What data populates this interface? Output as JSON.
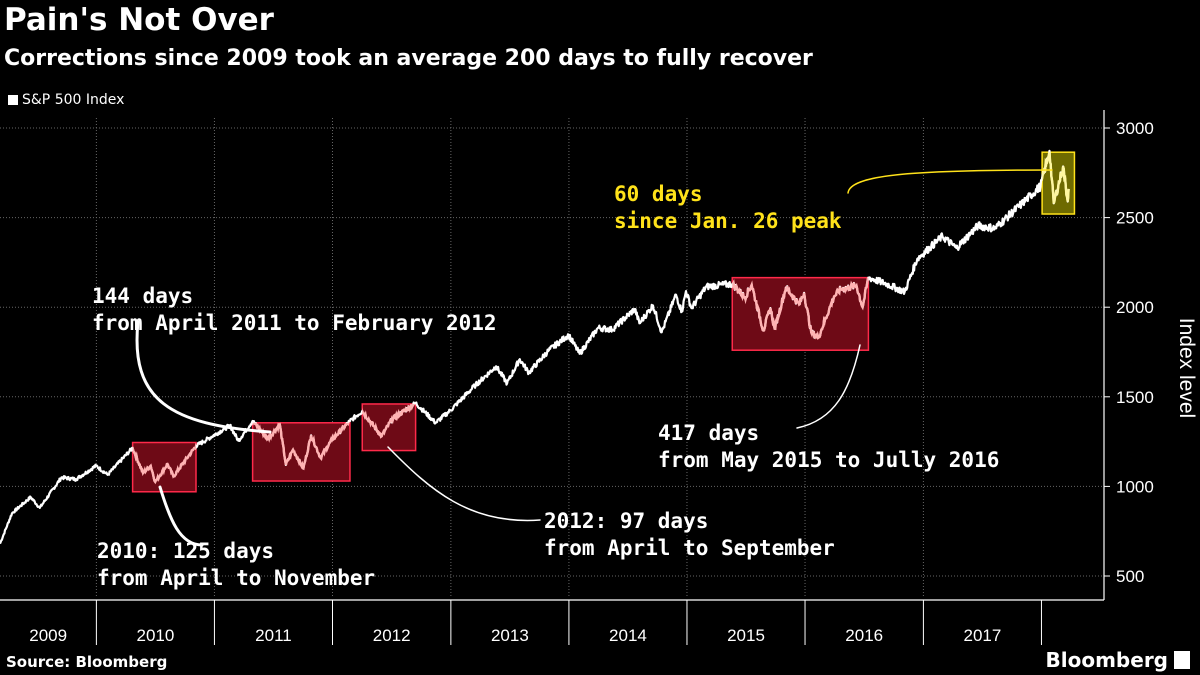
{
  "title": "Pain's Not Over",
  "subtitle": "Corrections since 2009 took an average 200 days to fully recover",
  "source": "Source: Bloomberg",
  "brand": "Bloomberg",
  "colors": {
    "background": "#000000",
    "line": "#ffffff",
    "grid": "#666666",
    "box_red_fill": "#6e0a16",
    "box_red_stroke": "#ff2a4a",
    "line_in_red": "#ffb3b3",
    "box_yellow_fill": "#6e6a00",
    "box_yellow_stroke": "#ffe21a",
    "line_in_yellow": "#fff7a0",
    "annotation_yellow": "#ffe21a"
  },
  "chart_data": {
    "type": "line",
    "xlabel": "",
    "ylabel": "Index level",
    "ylim": [
      400,
      3050
    ],
    "yticks": [
      500,
      1000,
      1500,
      2000,
      2500,
      3000
    ],
    "xlim": [
      "2009-03-09",
      "2018-07-01"
    ],
    "x_tick_labels": [
      "2009",
      "2010",
      "2011",
      "2012",
      "2013",
      "2014",
      "2015",
      "2016",
      "2017"
    ],
    "grid": true,
    "legend": "top-left",
    "series": [
      {
        "name": "S&P 500 Index",
        "points": [
          [
            "2009-03-09",
            680
          ],
          [
            "2009-04-15",
            850
          ],
          [
            "2009-06-12",
            940
          ],
          [
            "2009-07-10",
            880
          ],
          [
            "2009-09-15",
            1050
          ],
          [
            "2009-10-30",
            1040
          ],
          [
            "2009-12-31",
            1115
          ],
          [
            "2010-02-05",
            1065
          ],
          [
            "2010-04-23",
            1215
          ],
          [
            "2010-05-25",
            1075
          ],
          [
            "2010-06-18",
            1115
          ],
          [
            "2010-07-02",
            1025
          ],
          [
            "2010-08-09",
            1125
          ],
          [
            "2010-08-27",
            1055
          ],
          [
            "2010-10-15",
            1175
          ],
          [
            "2010-11-05",
            1225
          ],
          [
            "2011-02-18",
            1340
          ],
          [
            "2011-03-16",
            1255
          ],
          [
            "2011-04-29",
            1365
          ],
          [
            "2011-06-15",
            1265
          ],
          [
            "2011-07-22",
            1345
          ],
          [
            "2011-08-10",
            1120
          ],
          [
            "2011-09-01",
            1205
          ],
          [
            "2011-10-03",
            1100
          ],
          [
            "2011-10-27",
            1285
          ],
          [
            "2011-11-25",
            1160
          ],
          [
            "2011-12-30",
            1260
          ],
          [
            "2012-02-24",
            1365
          ],
          [
            "2012-04-02",
            1420
          ],
          [
            "2012-06-01",
            1280
          ],
          [
            "2012-07-03",
            1375
          ],
          [
            "2012-09-14",
            1465
          ],
          [
            "2012-11-15",
            1355
          ],
          [
            "2012-12-31",
            1425
          ],
          [
            "2013-03-15",
            1560
          ],
          [
            "2013-05-21",
            1670
          ],
          [
            "2013-06-24",
            1575
          ],
          [
            "2013-08-02",
            1710
          ],
          [
            "2013-08-30",
            1635
          ],
          [
            "2013-10-31",
            1760
          ],
          [
            "2013-12-31",
            1845
          ],
          [
            "2014-02-03",
            1740
          ],
          [
            "2014-04-01",
            1885
          ],
          [
            "2014-05-15",
            1875
          ],
          [
            "2014-07-24",
            1990
          ],
          [
            "2014-08-07",
            1910
          ],
          [
            "2014-09-18",
            2010
          ],
          [
            "2014-10-15",
            1860
          ],
          [
            "2014-11-28",
            2070
          ],
          [
            "2014-12-16",
            1975
          ],
          [
            "2014-12-29",
            2090
          ],
          [
            "2015-01-15",
            1995
          ],
          [
            "2015-03-02",
            2115
          ],
          [
            "2015-05-21",
            2130
          ],
          [
            "2015-06-29",
            2055
          ],
          [
            "2015-07-20",
            2125
          ],
          [
            "2015-08-25",
            1870
          ],
          [
            "2015-09-16",
            1995
          ],
          [
            "2015-09-29",
            1880
          ],
          [
            "2015-11-03",
            2110
          ],
          [
            "2015-12-14",
            2015
          ],
          [
            "2015-12-29",
            2080
          ],
          [
            "2016-01-20",
            1860
          ],
          [
            "2016-02-11",
            1830
          ],
          [
            "2016-03-31",
            2060
          ],
          [
            "2016-04-20",
            2100
          ],
          [
            "2016-06-08",
            2120
          ],
          [
            "2016-06-27",
            2000
          ],
          [
            "2016-07-15",
            2165
          ],
          [
            "2016-09-09",
            2130
          ],
          [
            "2016-11-04",
            2085
          ],
          [
            "2016-12-13",
            2270
          ],
          [
            "2017-03-01",
            2395
          ],
          [
            "2017-04-13",
            2330
          ],
          [
            "2017-06-19",
            2455
          ],
          [
            "2017-08-10",
            2440
          ],
          [
            "2017-10-31",
            2575
          ],
          [
            "2017-12-29",
            2675
          ],
          [
            "2018-01-26",
            2873
          ],
          [
            "2018-02-08",
            2580
          ],
          [
            "2018-03-09",
            2785
          ],
          [
            "2018-03-23",
            2590
          ],
          [
            "2018-03-26",
            2660
          ]
        ]
      }
    ],
    "highlights": [
      {
        "kind": "red",
        "start": "2010-04-23",
        "end": "2010-11-05",
        "ymin": 970,
        "ymax": 1245
      },
      {
        "kind": "red",
        "start": "2011-04-29",
        "end": "2012-02-24",
        "ymin": 1030,
        "ymax": 1355
      },
      {
        "kind": "red",
        "start": "2012-04-02",
        "end": "2012-09-14",
        "ymin": 1200,
        "ymax": 1460
      },
      {
        "kind": "red",
        "start": "2015-05-21",
        "end": "2016-07-15",
        "ymin": 1760,
        "ymax": 2165
      },
      {
        "kind": "yellow",
        "start": "2018-01-03",
        "end": "2018-04-13",
        "ymin": 2520,
        "ymax": 2865
      }
    ],
    "annotations": [
      {
        "lines": [
          "2010: 125 days",
          "from April to November"
        ],
        "color": "white"
      },
      {
        "lines": [
          "144 days",
          "from April 2011 to February 2012"
        ],
        "color": "white"
      },
      {
        "lines": [
          "2012: 97 days",
          "from April to September"
        ],
        "color": "white"
      },
      {
        "lines": [
          "417 days",
          "from May 2015 to Jully 2016"
        ],
        "color": "white"
      },
      {
        "lines": [
          "60 days",
          "since Jan. 26 peak"
        ],
        "color": "yellow"
      }
    ]
  }
}
